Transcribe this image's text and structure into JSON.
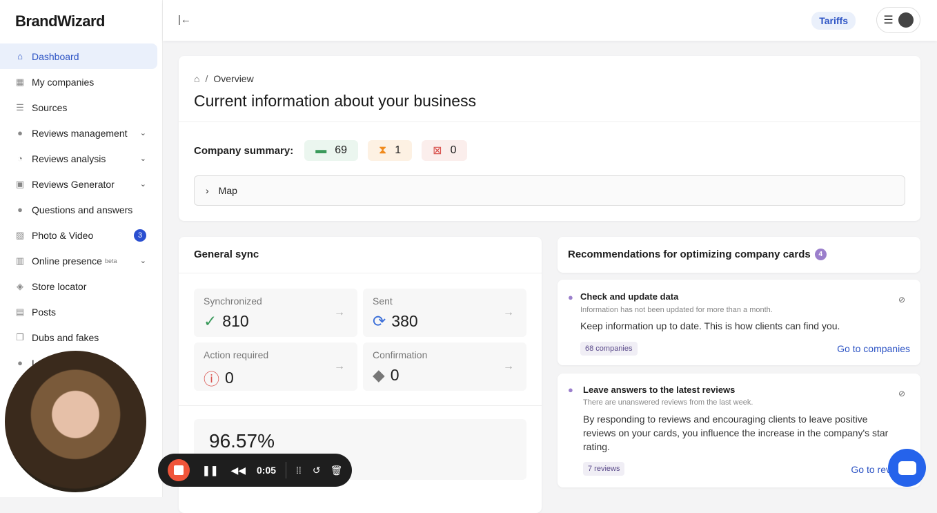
{
  "brand": "BrandWizard",
  "sidebar": {
    "items": [
      {
        "label": "Dashboard",
        "icon": "home-icon",
        "active": true
      },
      {
        "label": "My companies",
        "icon": "building-icon"
      },
      {
        "label": "Sources",
        "icon": "table-icon"
      },
      {
        "label": "Reviews management",
        "icon": "chat-icon",
        "chevron": true
      },
      {
        "label": "Reviews analysis",
        "icon": "pie-chart-icon",
        "chevron": true
      },
      {
        "label": "Reviews Generator",
        "icon": "star-badge-icon",
        "chevron": true
      },
      {
        "label": "Questions and answers",
        "icon": "chats-icon"
      },
      {
        "label": "Photo & Video",
        "icon": "image-icon",
        "badge": "3"
      },
      {
        "label": "Online presence",
        "icon": "bar-chart-icon",
        "sup": "beta",
        "chevron": true
      },
      {
        "label": "Store locator",
        "icon": "map-icon"
      },
      {
        "label": "Posts",
        "icon": "newspaper-icon"
      },
      {
        "label": "Dubs and fakes",
        "icon": "copy-icon"
      },
      {
        "label": "L",
        "icon": "pin-icon"
      }
    ]
  },
  "header": {
    "tariffs": "Tariffs"
  },
  "overview": {
    "breadcrumb": "Overview",
    "title": "Current information about your business",
    "summary_label": "Company summary:",
    "summary": [
      {
        "value": "69",
        "icon": "store-icon",
        "color": "#3a9a5b"
      },
      {
        "value": "1",
        "icon": "hourglass-icon",
        "color": "#f08a1c"
      },
      {
        "value": "0",
        "icon": "store-closed-icon",
        "color": "#d9534f"
      }
    ],
    "map_label": "Map"
  },
  "sync": {
    "title": "General sync",
    "tiles": [
      {
        "label": "Synchronized",
        "value": "810",
        "icon": "check-circle-icon",
        "color": "#3a9a5b"
      },
      {
        "label": "Sent",
        "value": "380",
        "icon": "refresh-icon",
        "color": "#3b6fd9"
      },
      {
        "label": "Action required",
        "value": "0",
        "icon": "alert-circle-icon",
        "color": "#d9534f"
      },
      {
        "label": "Confirmation",
        "value": "0",
        "icon": "verified-pin-icon",
        "color": "#777"
      }
    ],
    "percent": "96.57%"
  },
  "recs": {
    "title": "Recommendations for optimizing company cards",
    "count": "4",
    "items": [
      {
        "title": "Check and update data",
        "subtitle": "Information has not been updated for more than a month.",
        "body": "Keep information up to date. This is how clients can find you.",
        "tag": "68 companies",
        "link": "Go to companies"
      },
      {
        "title": "Leave answers to the latest reviews",
        "subtitle": "There are unanswered reviews from the last week.",
        "body": "By responding to reviews and encouraging clients to leave positive reviews on your cards, you influence the increase in the company's star rating.",
        "tag": "7 reviews",
        "link": "Go to reviews"
      }
    ]
  },
  "recorder": {
    "time": "0:05"
  }
}
